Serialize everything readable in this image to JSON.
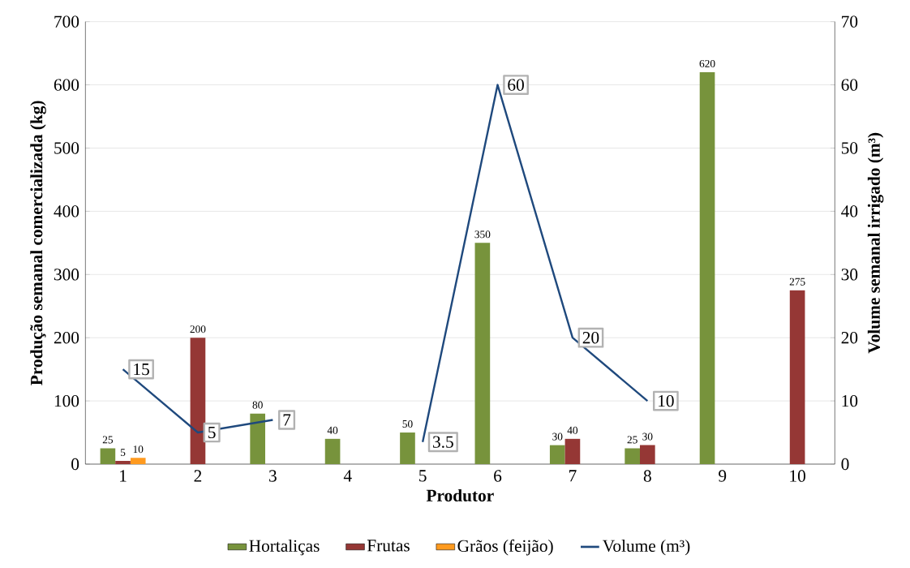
{
  "chart_data": {
    "type": "bar",
    "xlabel": "Produtor",
    "ylabel": "Produção semanal comercializada (kg)",
    "y2label": "Volume semanal irrigado (m³)",
    "categories": [
      "1",
      "2",
      "3",
      "4",
      "5",
      "6",
      "7",
      "8",
      "9",
      "10"
    ],
    "series": [
      {
        "name": "Hortaliças",
        "color": "#77933c",
        "values": [
          25,
          null,
          80,
          40,
          50,
          350,
          30,
          25,
          620,
          null
        ]
      },
      {
        "name": "Frutas",
        "color": "#953735",
        "values": [
          5,
          200,
          null,
          null,
          null,
          null,
          40,
          30,
          null,
          275
        ]
      },
      {
        "name": "Grãos (feijão)",
        "color": "#ff9a1f",
        "values": [
          10,
          null,
          null,
          null,
          null,
          null,
          null,
          null,
          null,
          null
        ]
      },
      {
        "name": "Volume (m³)",
        "type": "line",
        "axis": "y2",
        "color": "#1f497d",
        "values": [
          15,
          5,
          7,
          null,
          3.5,
          60,
          20,
          10,
          null,
          null
        ]
      }
    ],
    "ylim": [
      0,
      700
    ],
    "yticks": [
      0,
      100,
      200,
      300,
      400,
      500,
      600,
      700
    ],
    "y2lim": [
      0,
      70
    ],
    "y2ticks": [
      0,
      10,
      20,
      30,
      40,
      50,
      60,
      70
    ],
    "grid": "y",
    "legend": "bottom",
    "data_labels": true
  }
}
